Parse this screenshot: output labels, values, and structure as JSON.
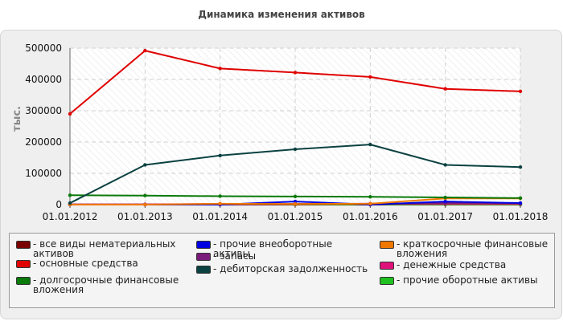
{
  "chart_data": {
    "type": "line",
    "title": "Динамика изменения активов",
    "ylabel": "тыс.",
    "xlabel": "",
    "x": [
      "01.01.2012",
      "01.01.2013",
      "01.01.2014",
      "01.01.2015",
      "01.01.2016",
      "01.01.2017",
      "01.01.2018"
    ],
    "yticks": [
      "0",
      "100000",
      "200000",
      "300000",
      "400000",
      "500000"
    ],
    "ylim": [
      0,
      500000
    ],
    "grid": true,
    "legend_position": "bottom",
    "series": [
      {
        "name": "все виды нематериальных активов",
        "color": "#7a0000",
        "values": [
          0,
          0,
          0,
          0,
          0,
          0,
          0
        ]
      },
      {
        "name": "основные средства",
        "color": "#e00000",
        "values": [
          290000,
          492000,
          435000,
          422000,
          408000,
          370000,
          362000
        ]
      },
      {
        "name": "долгосрочные финансовые вложения",
        "color": "#0a7a0a",
        "values": [
          30000,
          29000,
          27000,
          26000,
          25000,
          23000,
          21000
        ]
      },
      {
        "name": "прочие внеоборотные активы",
        "color": "#0000e0",
        "values": [
          0,
          0,
          0,
          10000,
          0,
          10000,
          5000
        ]
      },
      {
        "name": "запасы",
        "color": "#7a1a7a",
        "values": [
          0,
          0,
          0,
          2000,
          3000,
          5000,
          5000
        ]
      },
      {
        "name": "дебиторская задолженность",
        "color": "#0b4141",
        "values": [
          5000,
          127000,
          157000,
          177000,
          192000,
          127000,
          120000
        ]
      },
      {
        "name": "краткосрочные финансовые вложения",
        "color": "#f07800",
        "values": [
          0,
          0,
          3000,
          2000,
          3000,
          20000,
          20000
        ]
      },
      {
        "name": "денежные средства",
        "color": "#e0107a",
        "values": [
          1000,
          1000,
          2000,
          2000,
          3000,
          3000,
          3000
        ]
      },
      {
        "name": "прочие оборотные активы",
        "color": "#20c020",
        "values": [
          1000,
          1000,
          1000,
          1000,
          1000,
          1000,
          1000
        ]
      }
    ]
  }
}
